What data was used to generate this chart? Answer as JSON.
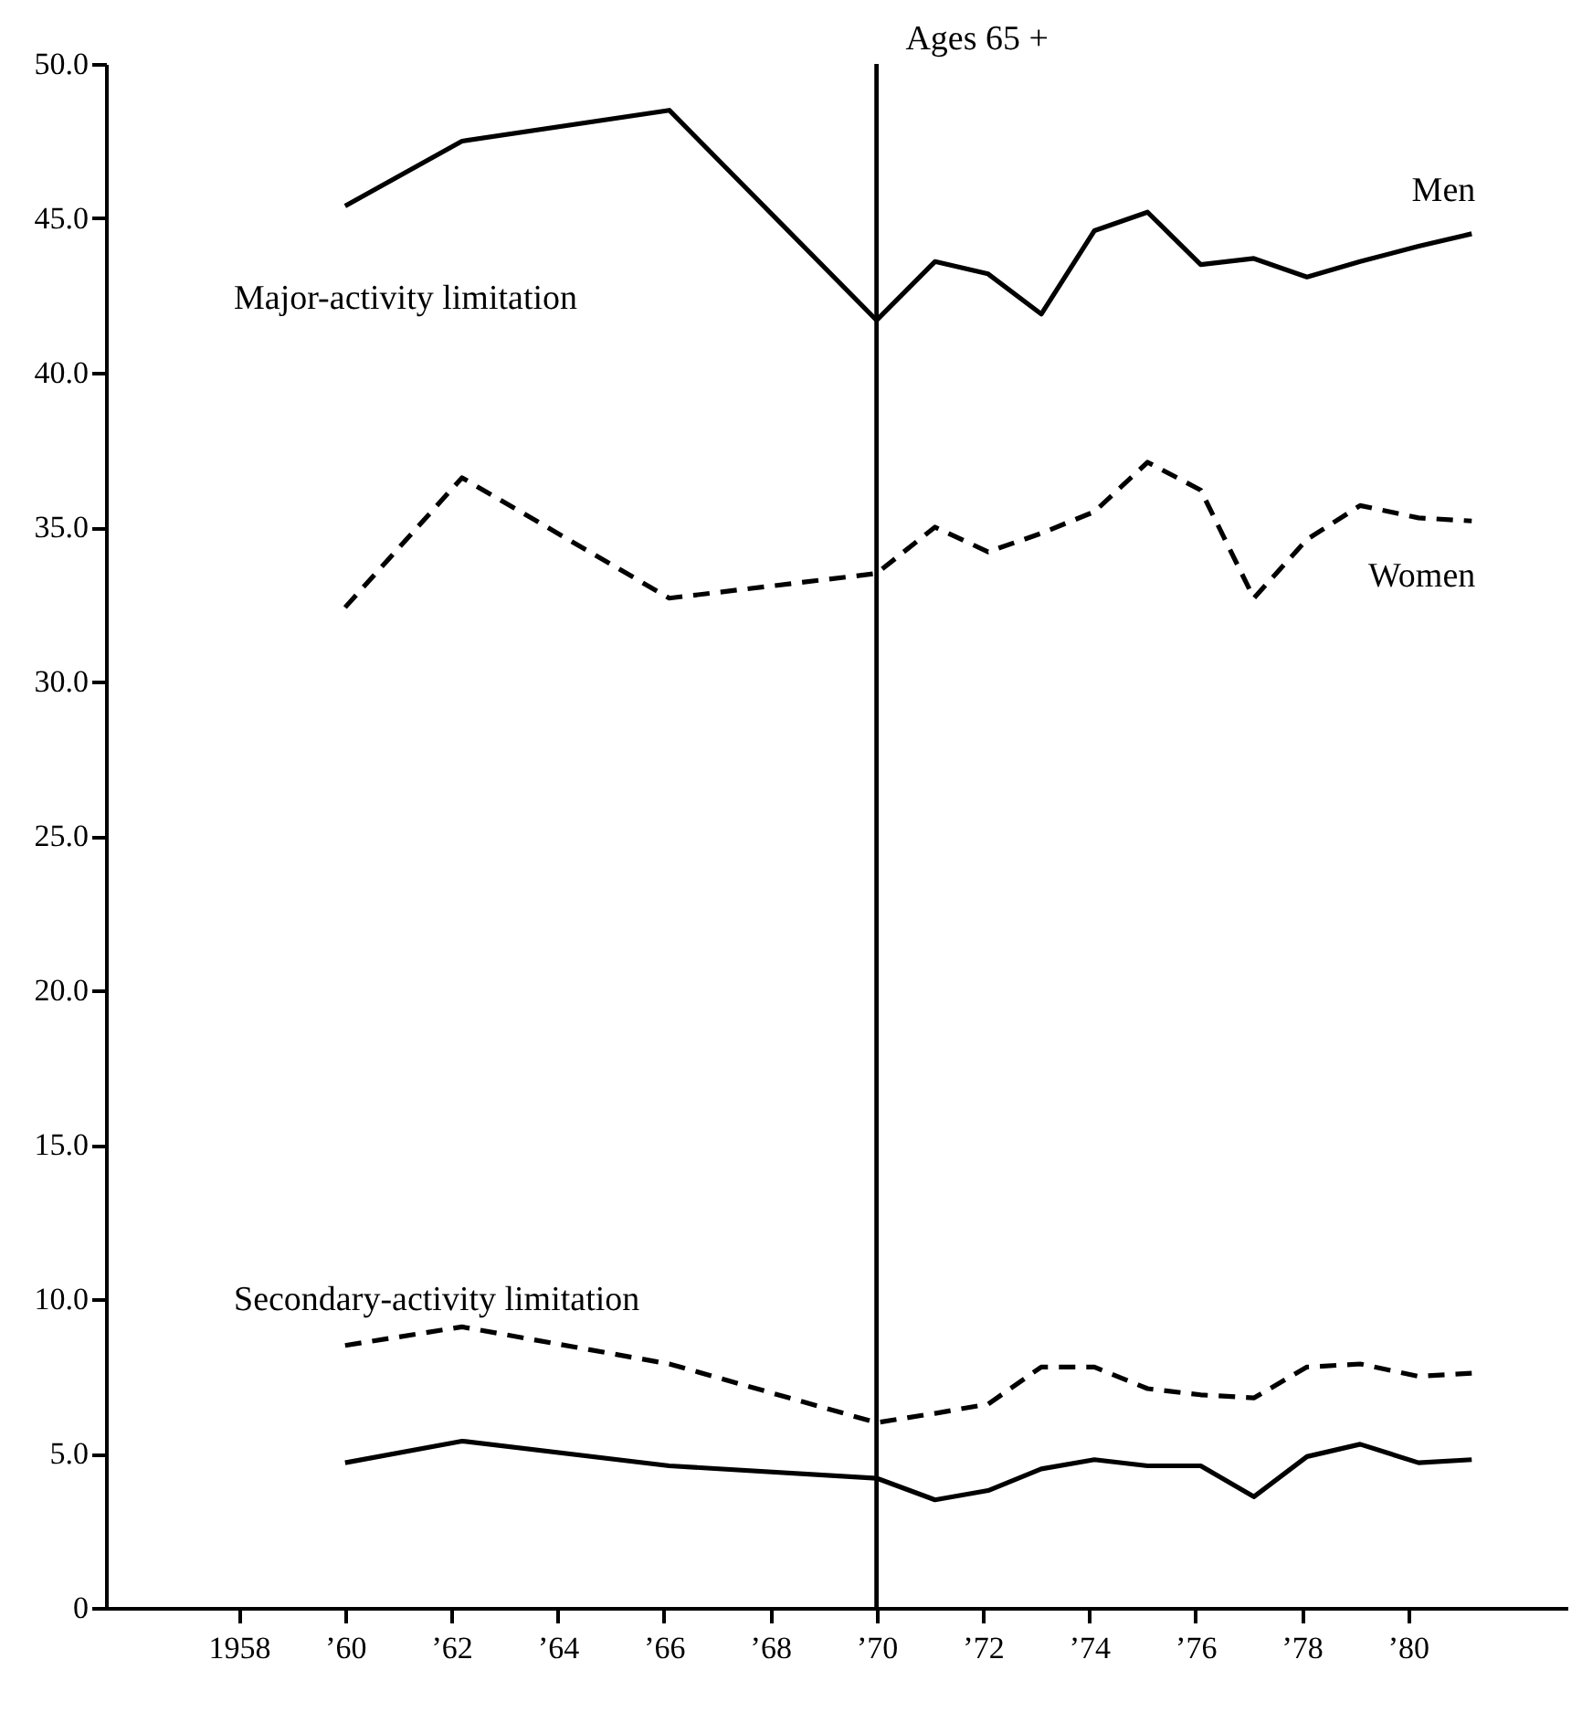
{
  "chart_data": {
    "type": "line",
    "xlim": [
      1955.5,
      1983
    ],
    "ylim": [
      0,
      50
    ],
    "xticks": [
      {
        "value": 1958,
        "label": "1958"
      },
      {
        "value": 1960,
        "label": "’60"
      },
      {
        "value": 1962,
        "label": "’62"
      },
      {
        "value": 1964,
        "label": "’64"
      },
      {
        "value": 1966,
        "label": "’66"
      },
      {
        "value": 1968,
        "label": "’68"
      },
      {
        "value": 1970,
        "label": "’70"
      },
      {
        "value": 1972,
        "label": "’72"
      },
      {
        "value": 1974,
        "label": "’74"
      },
      {
        "value": 1976,
        "label": "’76"
      },
      {
        "value": 1978,
        "label": "’78"
      },
      {
        "value": 1980,
        "label": "’80"
      }
    ],
    "yticks": [
      0,
      {
        "value": 5,
        "label": "5.0"
      },
      {
        "value": 10,
        "label": "10.0"
      },
      {
        "value": 15,
        "label": "15.0"
      },
      {
        "value": 20,
        "label": "20.0"
      },
      {
        "value": 25,
        "label": "25.0"
      },
      {
        "value": 30,
        "label": "30.0"
      },
      {
        "value": 35,
        "label": "35.0"
      },
      {
        "value": 40,
        "label": "40.0"
      },
      {
        "value": 45,
        "label": "45.0"
      },
      {
        "value": 50,
        "label": "50.0"
      }
    ],
    "x": [
      1960,
      1962.2,
      1966.1,
      1970,
      1971.1,
      1972.1,
      1973.1,
      1974.1,
      1975.1,
      1976.1,
      1977.1,
      1978.1,
      1979.1,
      1980.2,
      1981.2
    ],
    "series": [
      {
        "name": "Men",
        "color": "#000000",
        "line_style": "solid",
        "values": [
          45.4,
          47.5,
          48.5,
          41.7,
          43.6,
          43.2,
          41.9,
          44.6,
          45.2,
          43.5,
          43.7,
          43.1,
          43.6,
          44.1,
          44.5
        ]
      },
      {
        "name": "Women",
        "color": "#000000",
        "line_style": "dashed",
        "values": [
          32.4,
          36.6,
          32.7,
          33.5,
          35.0,
          34.2,
          34.8,
          35.5,
          37.1,
          36.2,
          32.7,
          34.6,
          35.7,
          35.3,
          35.2
        ]
      },
      {
        "color": "#000000",
        "line_style": "dashed",
        "values": [
          8.5,
          9.1,
          7.9,
          6.0,
          6.3,
          6.6,
          7.8,
          7.8,
          7.1,
          6.9,
          6.8,
          7.8,
          7.9,
          7.5,
          7.6
        ]
      },
      {
        "color": "#000000",
        "line_style": "solid",
        "values": [
          4.7,
          5.4,
          4.6,
          4.2,
          3.5,
          3.8,
          4.5,
          4.8,
          4.6,
          4.6,
          3.6,
          4.9,
          5.3,
          4.7,
          4.8
        ]
      }
    ],
    "ref_lines": [
      {
        "axis": "x",
        "value": 1970,
        "label": "Ages 65 +",
        "color": "#000000"
      }
    ],
    "annotations": [
      "Major-activity limitation",
      "Secondary-activity limitation"
    ],
    "grid": false,
    "marker": "none"
  }
}
